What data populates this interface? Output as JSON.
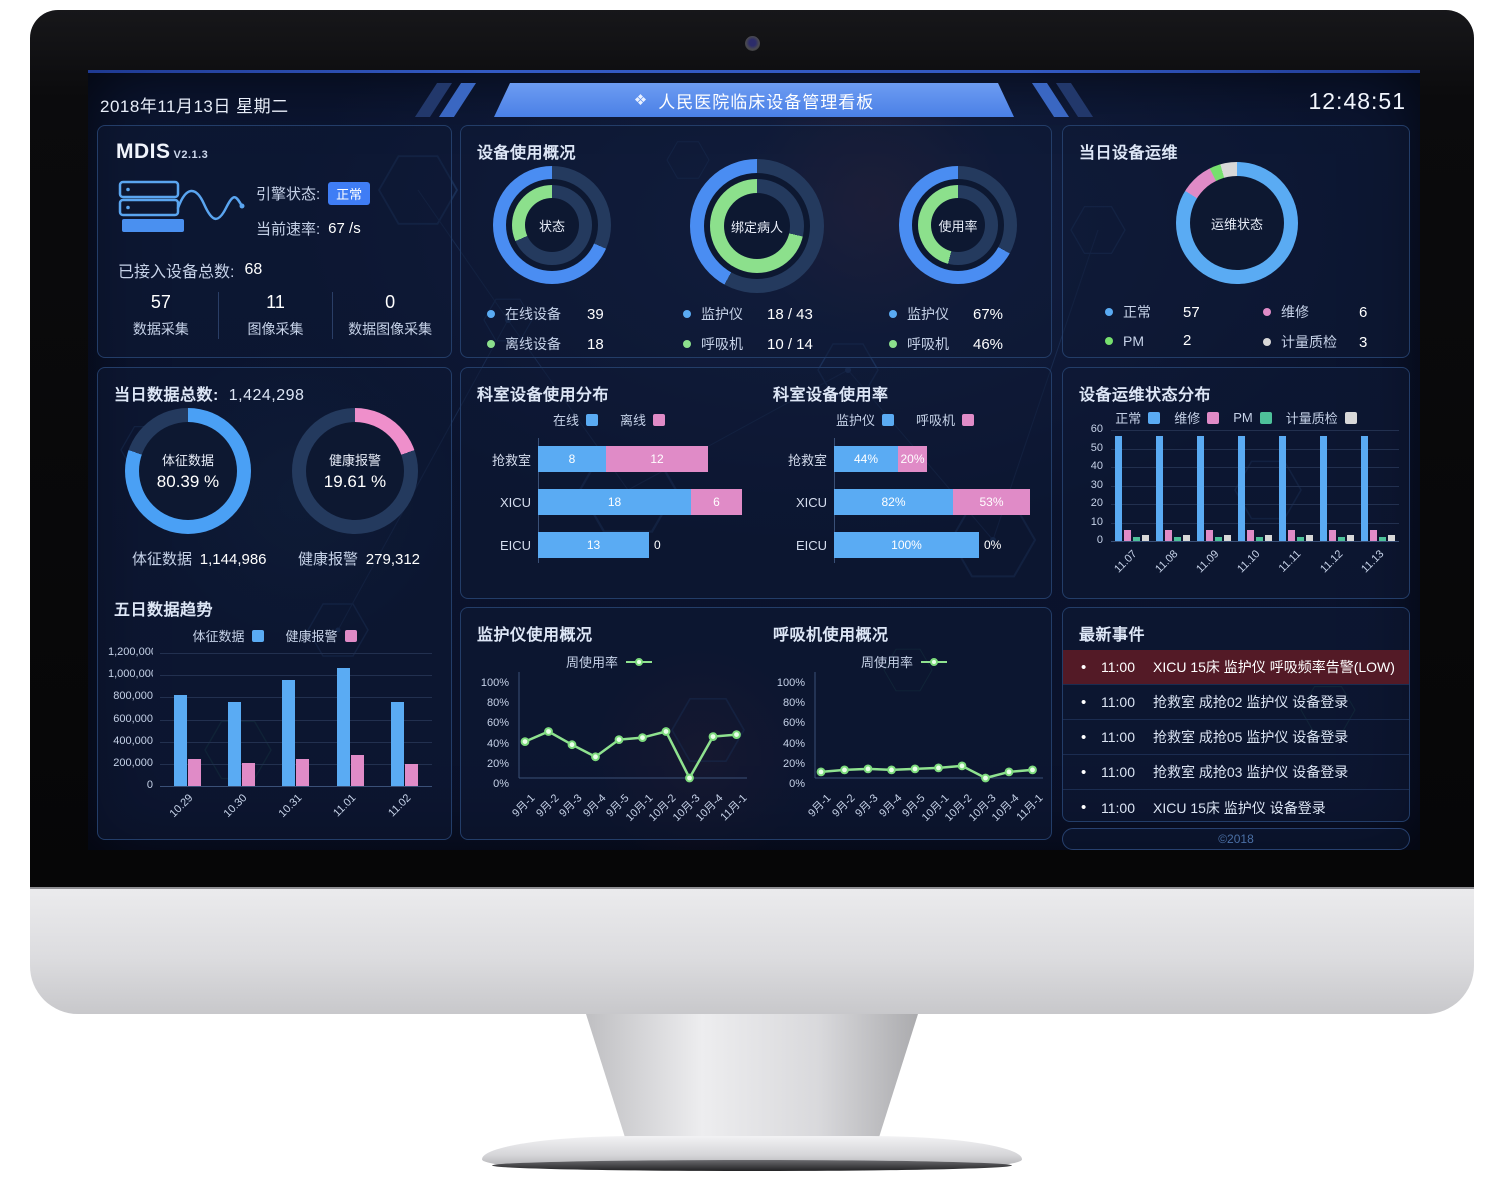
{
  "header": {
    "date": "2018年11月13日 星期二",
    "icon_glyph": "❖",
    "title": "人民医院临床设备管理看板",
    "time": "12:48:51"
  },
  "colors": {
    "blue": "#4a8df2",
    "sky": "#5aabf3",
    "green": "#8ce08c",
    "pink": "#e08bc7",
    "teal": "#4ec19a",
    "gray": "#d8d8d8",
    "ring_dark": "#243a5e",
    "accent": "#3f7df5",
    "data_blue": "#4aa0f5",
    "data_pink": "#ef8fcb",
    "alert_bg": "#531a26"
  },
  "mdis": {
    "name": "MDIS",
    "version": "V2.1.3",
    "engine_label": "引擎状态:",
    "engine_status": "正常",
    "rate_label": "当前速率:",
    "rate_value": "67 /s",
    "total_label": "已接入设备总数:",
    "total_value": "68",
    "stats": [
      {
        "value": "57",
        "label": "数据采集"
      },
      {
        "value": "11",
        "label": "图像采集"
      },
      {
        "value": "0",
        "label": "数据图像采集"
      }
    ]
  },
  "device_usage": {
    "title": "设备使用概况",
    "donuts": [
      {
        "center": "状态",
        "outer_pct": 68.4,
        "inner_pct": 31.6,
        "legend": [
          {
            "label": "在线设备",
            "value": "39"
          },
          {
            "label": "离线设备",
            "value": "18"
          }
        ]
      },
      {
        "center": "绑定病人",
        "outer_pct": 41.9,
        "inner_pct": 71.4,
        "legend": [
          {
            "label": "监护仪",
            "value": "18 / 43"
          },
          {
            "label": "呼吸机",
            "value": "10 / 14"
          }
        ]
      },
      {
        "center": "使用率",
        "outer_pct": 67,
        "inner_pct": 46,
        "legend": [
          {
            "label": "监护仪",
            "value": "67%"
          },
          {
            "label": "呼吸机",
            "value": "46%"
          }
        ]
      }
    ]
  },
  "maintenance_today": {
    "title": "当日设备运维",
    "center": "运维状态",
    "segments": [
      {
        "label": "正常",
        "value": 57,
        "color": "#5aabf3"
      },
      {
        "label": "维修",
        "value": 6,
        "color": "#e08bc7"
      },
      {
        "label": "PM",
        "value": 2,
        "color": "#77e06e"
      },
      {
        "label": "计量质检",
        "value": 3,
        "color": "#d8d8d8"
      }
    ]
  },
  "data_today": {
    "title_label": "当日数据总数:",
    "title_value": "1,424,298",
    "donuts": [
      {
        "label": "体征数据",
        "pct_text": "80.39 %",
        "pct": 80.39,
        "color": "#4aa0f5"
      },
      {
        "label": "健康报警",
        "pct_text": "19.61 %",
        "pct": 19.61,
        "color": "#ef8fcb"
      }
    ],
    "totals": [
      {
        "label": "体征数据",
        "value": "1,144,986"
      },
      {
        "label": "健康报警",
        "value": "279,312"
      }
    ]
  },
  "five_day": {
    "title": "五日数据趋势",
    "type": "bar",
    "legend": [
      "体征数据",
      "健康报警"
    ],
    "categories": [
      "10.29",
      "10.30",
      "10.31",
      "11.01",
      "11.02"
    ],
    "series": [
      {
        "name": "体征数据",
        "values": [
          820000,
          760000,
          960000,
          1065000,
          760000
        ]
      },
      {
        "name": "健康报警",
        "values": [
          244000,
          211000,
          247000,
          280000,
          202000
        ]
      }
    ],
    "y_labels": [
      "1,200,000",
      "1,000,000",
      "800,000",
      "600,000",
      "400,000",
      "200,000",
      "0"
    ],
    "y_max": 1200000
  },
  "dept_dist": {
    "title": "科室设备使用分布",
    "type": "bar",
    "legend": [
      "在线",
      "离线"
    ],
    "categories": [
      "抢救室",
      "XICU",
      "EICU"
    ],
    "series": [
      {
        "name": "在线",
        "values": [
          8,
          18,
          13
        ]
      },
      {
        "name": "离线",
        "values": [
          12,
          6,
          0
        ]
      }
    ],
    "x_max": 24,
    "suffix": ""
  },
  "dept_rate": {
    "title": "科室设备使用率",
    "type": "bar",
    "legend": [
      "监护仪",
      "呼吸机"
    ],
    "categories": [
      "抢救室",
      "XICU",
      "EICU"
    ],
    "series": [
      {
        "name": "监护仪",
        "values": [
          44,
          82,
          100
        ]
      },
      {
        "name": "呼吸机",
        "values": [
          20,
          53,
          0
        ]
      }
    ],
    "x_max": 140,
    "suffix": "%"
  },
  "maint_dist": {
    "title": "设备运维状态分布",
    "type": "bar",
    "legend": [
      "正常",
      "维修",
      "PM",
      "计量质检"
    ],
    "categories": [
      "11.07",
      "11.08",
      "11.09",
      "11.10",
      "11.11",
      "11.12",
      "11.13"
    ],
    "series": [
      {
        "name": "正常",
        "values": [
          57,
          57,
          57,
          57,
          57,
          57,
          57
        ]
      },
      {
        "name": "维修",
        "values": [
          6,
          6,
          6,
          6,
          6,
          6,
          6
        ]
      },
      {
        "name": "PM",
        "values": [
          2,
          2,
          2,
          2,
          2,
          2,
          2
        ]
      },
      {
        "name": "计量质检",
        "values": [
          3,
          3,
          3,
          3,
          3,
          3,
          3
        ]
      }
    ],
    "y_labels": [
      "60",
      "50",
      "40",
      "30",
      "20",
      "10",
      "0"
    ],
    "y_max": 60
  },
  "monitor_usage": {
    "title": "监护仪使用概况",
    "type": "line",
    "legend": "周使用率",
    "categories": [
      "9月-1",
      "9月-2",
      "9月-3",
      "9月-4",
      "9月-5",
      "10月-1",
      "10月-2",
      "10月-3",
      "10月-4",
      "11月-1"
    ],
    "values": [
      36,
      46,
      33,
      21,
      38,
      40,
      46,
      0,
      41,
      43
    ],
    "y_labels": [
      "100%",
      "80%",
      "60%",
      "40%",
      "20%",
      "0%"
    ]
  },
  "vent_usage": {
    "title": "呼吸机使用概况",
    "type": "line",
    "legend": "周使用率",
    "categories": [
      "9月-1",
      "9月-2",
      "9月-3",
      "9月-4",
      "9月-5",
      "10月-1",
      "10月-2",
      "10月-3",
      "10月-4",
      "11月-1"
    ],
    "values": [
      6,
      8,
      9,
      8,
      9,
      10,
      12,
      0,
      6,
      8
    ],
    "y_labels": [
      "100%",
      "80%",
      "60%",
      "40%",
      "20%",
      "0%"
    ]
  },
  "events": {
    "title": "最新事件",
    "bullet": "•",
    "items": [
      {
        "time": "11:00",
        "text": "XICU 15床 监护仪 呼吸频率告警(LOW)",
        "alert": true
      },
      {
        "time": "11:00",
        "text": "抢救室 成抢02 监护仪 设备登录",
        "alert": false
      },
      {
        "time": "11:00",
        "text": "抢救室 成抢05 监护仪 设备登录",
        "alert": false
      },
      {
        "time": "11:00",
        "text": "抢救室 成抢03 监护仪 设备登录",
        "alert": false
      },
      {
        "time": "11:00",
        "text": "XICU 15床 监护仪 设备登录",
        "alert": false
      }
    ],
    "footer": "©2018"
  }
}
